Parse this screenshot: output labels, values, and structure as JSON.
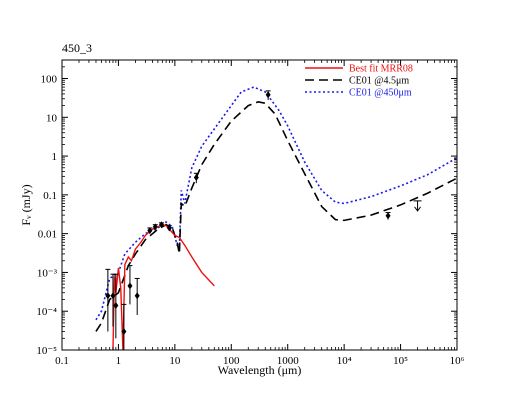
{
  "chart_data": {
    "type": "line",
    "title": "450_3",
    "xlabel": "Wavelength (μm)",
    "ylabel": "Fᵥ (mJy)",
    "x_scale": "log",
    "y_scale": "log",
    "xlim": [
      0.1,
      1000000
    ],
    "ylim": [
      1e-05,
      300
    ],
    "x_ticks": [
      {
        "value": 0.1,
        "label": "0.1"
      },
      {
        "value": 1,
        "label": "1"
      },
      {
        "value": 10,
        "label": "10"
      },
      {
        "value": 100,
        "label": "100"
      },
      {
        "value": 1000,
        "label": "1000"
      },
      {
        "value": 10000,
        "label": "10⁴"
      },
      {
        "value": 100000,
        "label": "10⁵"
      },
      {
        "value": 1000000,
        "label": "10⁶"
      }
    ],
    "y_ticks": [
      {
        "value": 1e-05,
        "label": "10⁻⁵"
      },
      {
        "value": 0.0001,
        "label": "10⁻⁴"
      },
      {
        "value": 0.001,
        "label": "10⁻³"
      },
      {
        "value": 0.01,
        "label": "0.01"
      },
      {
        "value": 0.1,
        "label": "0.1"
      },
      {
        "value": 1,
        "label": "1"
      },
      {
        "value": 10,
        "label": "10"
      },
      {
        "value": 100,
        "label": "100"
      }
    ],
    "legend_position": "top-right",
    "series": [
      {
        "name": "Best fit MRR08",
        "color": "#ee1111",
        "style": "solid",
        "points": [
          [
            0.8,
            1e-05
          ],
          [
            0.85,
            0.0008
          ],
          [
            0.9,
            0.0003
          ],
          [
            1.0,
            0.0013
          ],
          [
            1.1,
            0.0004
          ],
          [
            1.2,
            1e-05
          ],
          [
            1.3,
            0.0016
          ],
          [
            1.5,
            0.0025
          ],
          [
            1.7,
            0.002
          ],
          [
            2.0,
            0.004
          ],
          [
            2.5,
            0.006
          ],
          [
            3.0,
            0.009
          ],
          [
            3.5,
            0.011
          ],
          [
            4.0,
            0.013
          ],
          [
            5.0,
            0.015
          ],
          [
            6.0,
            0.017
          ],
          [
            7.0,
            0.016
          ],
          [
            8.0,
            0.013
          ],
          [
            10.0,
            0.009
          ],
          [
            12.0,
            0.008
          ],
          [
            15.0,
            0.005
          ],
          [
            20.0,
            0.0025
          ],
          [
            30.0,
            0.001
          ],
          [
            50.0,
            0.00045
          ]
        ]
      },
      {
        "name": "CE01 @4.5μm",
        "color": "#000000",
        "style": "dashed",
        "points": [
          [
            0.4,
            3e-05
          ],
          [
            0.5,
            5e-05
          ],
          [
            0.7,
            0.0002
          ],
          [
            1.0,
            0.0003
          ],
          [
            1.5,
            0.0015
          ],
          [
            2.0,
            0.003
          ],
          [
            3.0,
            0.007
          ],
          [
            5.0,
            0.013
          ],
          [
            7.0,
            0.017
          ],
          [
            9.0,
            0.014
          ],
          [
            11.0,
            0.006
          ],
          [
            12.0,
            0.003
          ],
          [
            13.0,
            0.06
          ],
          [
            15.0,
            0.05
          ],
          [
            20.0,
            0.15
          ],
          [
            30.0,
            0.6
          ],
          [
            50.0,
            2.0
          ],
          [
            100.0,
            8.0
          ],
          [
            200.0,
            20.0
          ],
          [
            300.0,
            25.0
          ],
          [
            400.0,
            23.0
          ],
          [
            600.0,
            12.0
          ],
          [
            1000.0,
            2.5
          ],
          [
            2000.0,
            0.35
          ],
          [
            4000.0,
            0.05
          ],
          [
            7000.0,
            0.023
          ],
          [
            10000.0,
            0.022
          ],
          [
            30000.0,
            0.03
          ],
          [
            100000.0,
            0.055
          ],
          [
            300000.0,
            0.11
          ],
          [
            1000000.0,
            0.27
          ]
        ]
      },
      {
        "name": "CE01 @450μm",
        "color": "#1a1aee",
        "style": "dotted",
        "points": [
          [
            0.4,
            6e-05
          ],
          [
            0.5,
            0.0001
          ],
          [
            0.7,
            0.0007
          ],
          [
            1.0,
            0.001
          ],
          [
            1.3,
            0.003
          ],
          [
            2.0,
            0.006
          ],
          [
            3.0,
            0.01
          ],
          [
            5.0,
            0.014
          ],
          [
            7.0,
            0.02
          ],
          [
            9.0,
            0.015
          ],
          [
            11.0,
            0.005
          ],
          [
            12.0,
            0.004
          ],
          [
            13.0,
            0.13
          ],
          [
            15.0,
            0.06
          ],
          [
            20.0,
            0.5
          ],
          [
            30.0,
            1.8
          ],
          [
            50.0,
            5.0
          ],
          [
            100.0,
            20.0
          ],
          [
            150.0,
            45.0
          ],
          [
            250.0,
            60.0
          ],
          [
            400.0,
            45.0
          ],
          [
            700.0,
            15.0
          ],
          [
            1000.0,
            6.0
          ],
          [
            2000.0,
            0.7
          ],
          [
            4000.0,
            0.13
          ],
          [
            7000.0,
            0.065
          ],
          [
            10000.0,
            0.06
          ],
          [
            30000.0,
            0.09
          ],
          [
            100000.0,
            0.17
          ],
          [
            300000.0,
            0.33
          ],
          [
            1000000.0,
            0.9
          ]
        ]
      }
    ],
    "observations": [
      {
        "x": 0.65,
        "y": 0.00025,
        "y_low": 3e-05,
        "y_high": 0.0012
      },
      {
        "x": 0.8,
        "y": 0.00025,
        "y_low": 4e-05,
        "y_high": 0.0009
      },
      {
        "x": 0.9,
        "y": 0.00014,
        "y_low": 2e-05,
        "y_high": 0.0009
      },
      {
        "x": 1.25,
        "y": 3e-05,
        "y_low": 1e-05,
        "y_high": 0.00015
      },
      {
        "x": 1.6,
        "y": 0.00045,
        "y_low": 0.00015,
        "y_high": 0.0015
      },
      {
        "x": 2.15,
        "y": 0.00025,
        "y_low": 8e-05,
        "y_high": 0.0007
      },
      {
        "x": 3.6,
        "y": 0.012,
        "y_low": 0.01,
        "y_high": 0.014
      },
      {
        "x": 4.5,
        "y": 0.015,
        "y_low": 0.013,
        "y_high": 0.017
      },
      {
        "x": 5.8,
        "y": 0.017,
        "y_low": 0.015,
        "y_high": 0.019
      },
      {
        "x": 8.0,
        "y": 0.014,
        "y_low": 0.012,
        "y_high": 0.016
      },
      {
        "x": 24.0,
        "y": 0.28,
        "y_low": 0.2,
        "y_high": 0.36
      },
      {
        "x": 450.0,
        "y": 38.0,
        "y_low": 28.0,
        "y_high": 48.0
      },
      {
        "x": 60000.0,
        "y": 0.029,
        "y_low": 0.023,
        "y_high": 0.035
      }
    ],
    "upper_limits": [
      {
        "x": 200000.0,
        "y": 0.07
      }
    ]
  }
}
